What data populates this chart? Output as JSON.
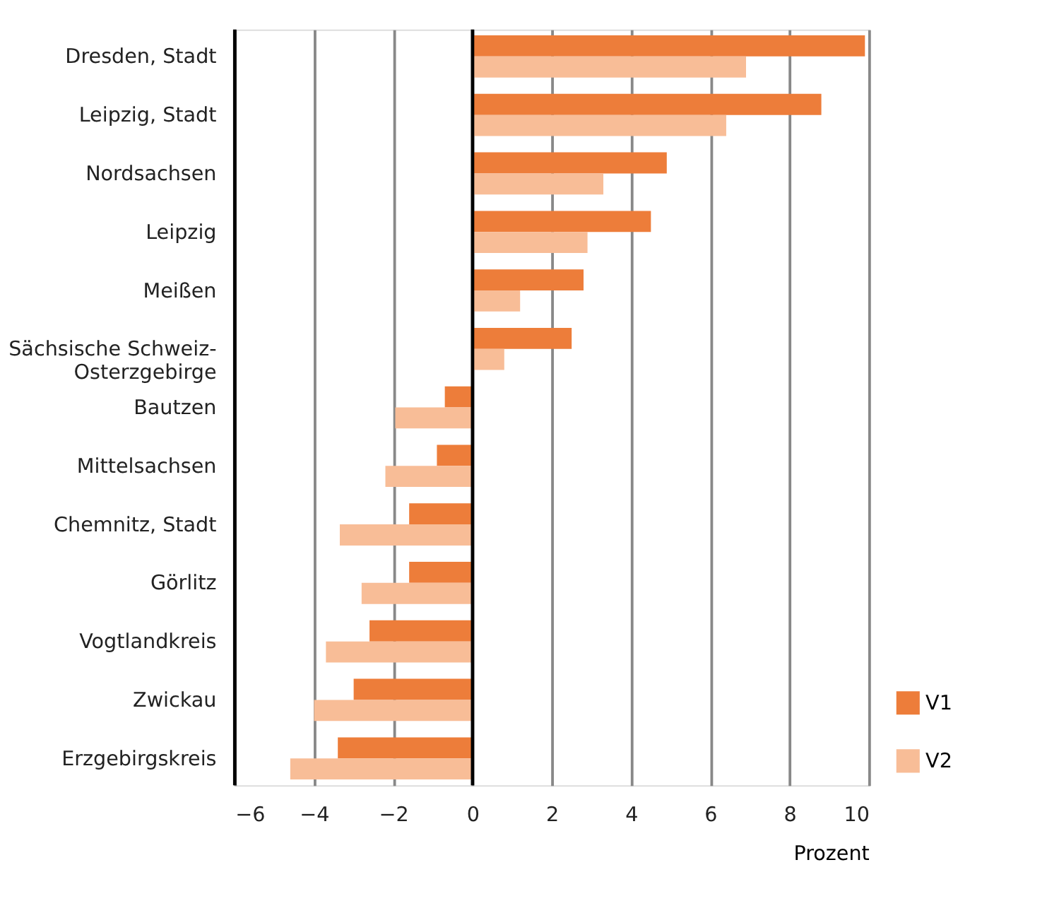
{
  "chart_data": {
    "type": "bar",
    "orientation": "horizontal",
    "xlabel": "Prozent",
    "categories": [
      "Dresden, Stadt",
      "Leipzig, Stadt",
      "Nordsachsen",
      "Leipzig",
      "Meißen",
      "Sächsische Schweiz-Osterzgebirge",
      "Bautzen",
      "Mittelsachsen",
      "Chemnitz, Stadt",
      "Görlitz",
      "Vogtlandkreis",
      "Zwickau",
      "Erzgebirgskreis"
    ],
    "series": [
      {
        "name": "V1",
        "color": "#ed7d3a",
        "values": [
          9.9,
          8.8,
          4.9,
          4.5,
          2.8,
          2.5,
          -0.7,
          -0.9,
          -1.6,
          -1.6,
          -2.6,
          -3.0,
          -3.4
        ]
      },
      {
        "name": "V2",
        "color": "#f8bd97",
        "values": [
          6.9,
          6.4,
          3.3,
          2.9,
          1.2,
          0.8,
          -1.95,
          -2.2,
          -3.35,
          -2.8,
          -3.7,
          -4.0,
          -4.6
        ]
      }
    ],
    "xlim": [
      -6,
      10
    ],
    "xticks": [
      -6,
      -4,
      -2,
      0,
      2,
      4,
      6,
      8,
      10
    ],
    "grid": "x",
    "legend": "bottom right",
    "ref_lines": [
      {
        "axis": "x",
        "value": 0,
        "color": "#000000"
      }
    ]
  }
}
